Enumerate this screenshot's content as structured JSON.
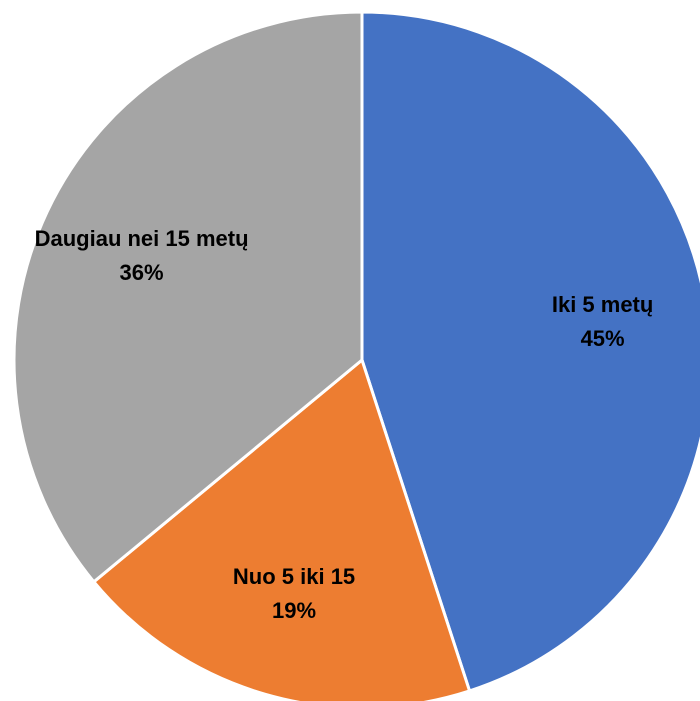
{
  "chart_data": {
    "type": "pie",
    "categories": [
      "Iki 5 metų",
      "Nuo 5 iki 15",
      "Daugiau nei 15 metų"
    ],
    "values": [
      45,
      19,
      36
    ],
    "value_labels": [
      "45%",
      "19%",
      "36%"
    ],
    "colors": [
      "#4472c4",
      "#ed7d31",
      "#a5a5a5"
    ]
  }
}
